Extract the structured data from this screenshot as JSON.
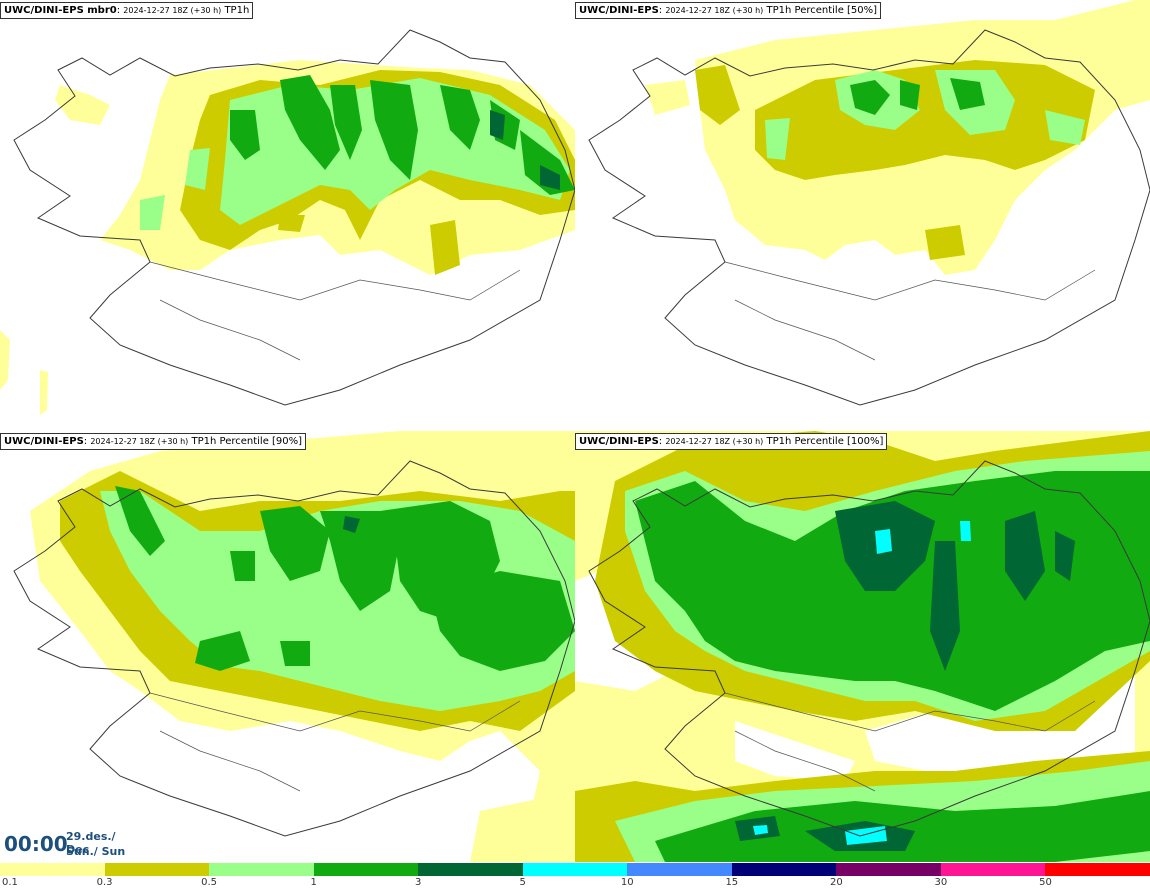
{
  "panels": [
    {
      "model": "UWC/DINI-EPS mbr0",
      "run": "2024-12-27 18Z (+30 h)",
      "field": "TP1h"
    },
    {
      "model": "UWC/DINI-EPS",
      "run": "2024-12-27 18Z (+30 h)",
      "field": "TP1h Percentile [50%]"
    },
    {
      "model": "UWC/DINI-EPS",
      "run": "2024-12-27 18Z (+30 h)",
      "field": "TP1h Percentile [90%]"
    },
    {
      "model": "UWC/DINI-EPS",
      "run": "2024-12-27 18Z (+30 h)",
      "field": "TP1h Percentile [100%]"
    }
  ],
  "valid_time": {
    "time": "00:00",
    "date_line1": "29.des./ Dec",
    "date_line2": "Sun./ Sun"
  },
  "legend": {
    "ticks": [
      "0.1",
      "0.3",
      "0.5",
      "1",
      "3",
      "5",
      "10",
      "15",
      "20",
      "30",
      "50"
    ],
    "colors": [
      "#ffff99",
      "#cccc00",
      "#99ff88",
      "#11aa11",
      "#006633",
      "#00ffff",
      "#4488ff",
      "#000077",
      "#770066",
      "#ff1493",
      "#ff0000"
    ]
  },
  "map_colors": {
    "coast": "#3a3a3a",
    "very_light": "#ffff99",
    "light": "#cccc00",
    "mid": "#99ff88",
    "green": "#11aa11",
    "dark": "#006633",
    "cyan": "#00ffff"
  }
}
